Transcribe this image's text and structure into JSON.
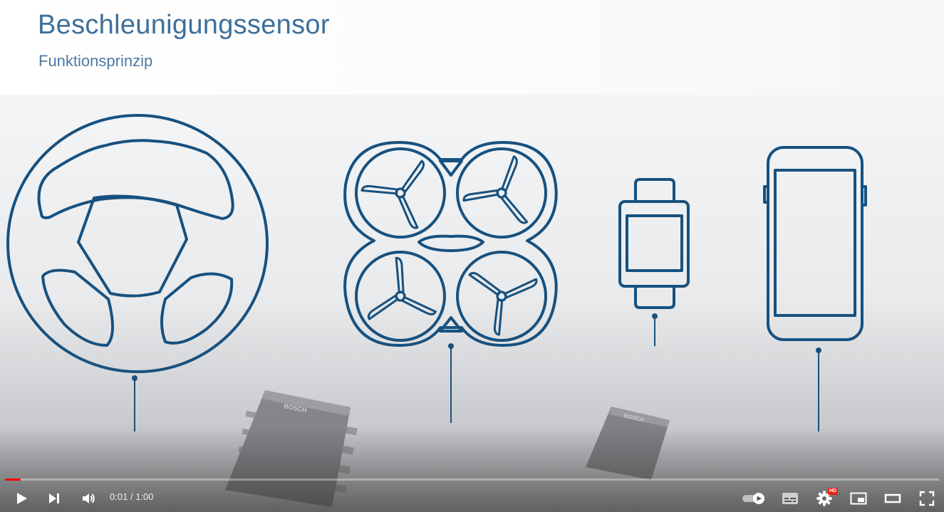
{
  "slide": {
    "title": "Beschleunigungssensor",
    "subtitle": "Funktionsprinzip",
    "chip_brand": "BOSCH"
  },
  "player": {
    "current_time": "0:01",
    "separator": "/",
    "duration": "1:00",
    "progress_fraction": 0.017,
    "hd_badge": "HD",
    "accent_color": "#ff0000"
  },
  "icons": {
    "steering_wheel": "steering-wheel-icon",
    "drone": "drone-icon",
    "smartwatch": "smartwatch-icon",
    "smartphone": "smartphone-icon"
  },
  "colors": {
    "line_art": "#17517f",
    "title": "#3d6f9b"
  }
}
